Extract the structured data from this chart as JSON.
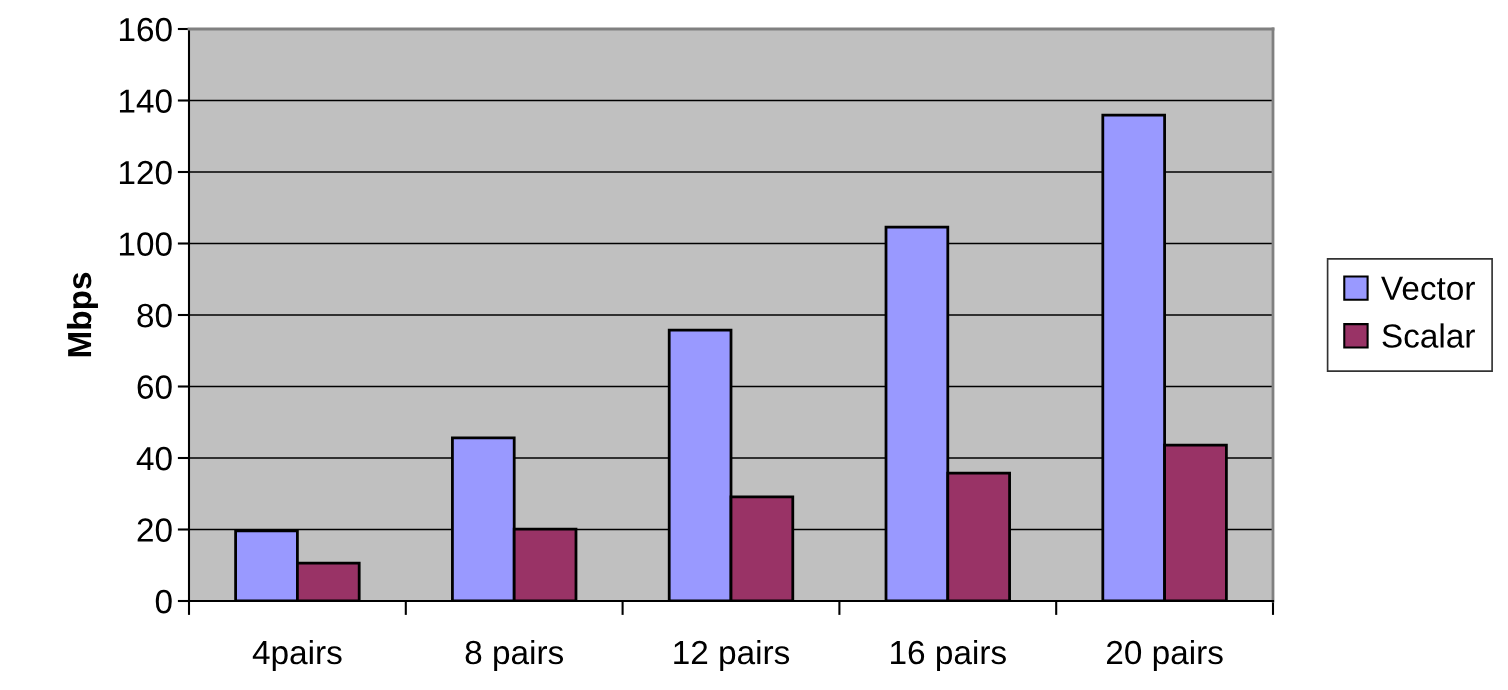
{
  "chart_data": {
    "type": "bar",
    "ylabel": "Mbps",
    "categories": [
      "4pairs",
      "8 pairs",
      "12 pairs",
      "16 pairs",
      "20 pairs"
    ],
    "series": [
      {
        "name": "Vector",
        "color": "#9999ff",
        "values": [
          19.6,
          45.6,
          75.8,
          104.6,
          135.9
        ]
      },
      {
        "name": "Scalar",
        "color": "#993366",
        "values": [
          10.6,
          20.1,
          29.1,
          35.8,
          43.6
        ]
      }
    ],
    "ylim": [
      0,
      160
    ],
    "yticks": [
      0,
      20,
      40,
      60,
      80,
      100,
      120,
      140,
      160
    ],
    "grid": "y",
    "legend": "right"
  }
}
